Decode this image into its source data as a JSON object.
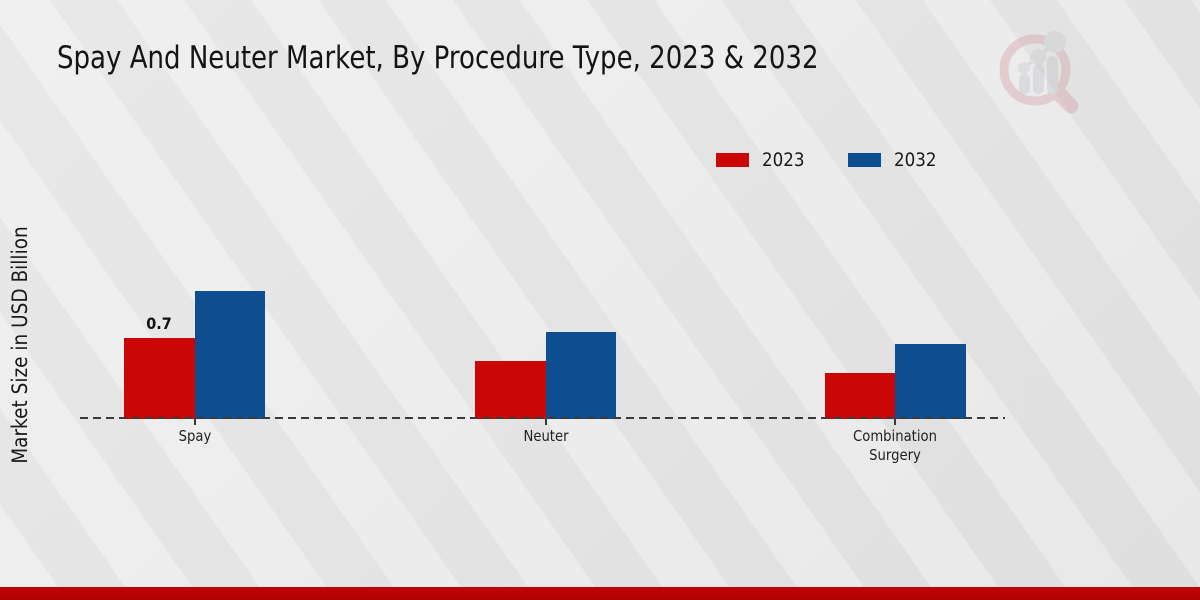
{
  "title": "Spay And Neuter Market, By Procedure Type, 2023 & 2032",
  "ylabel": "Market Size in USD Billion",
  "legend": {
    "items": [
      {
        "label": "2023",
        "color": "#c90707"
      },
      {
        "label": "2032",
        "color": "#0e4d8f"
      }
    ]
  },
  "colors": {
    "bar_2023": "#c90707",
    "bar_2032": "#0e4d8f",
    "footer": "#b70404",
    "background": "#e8e8e8",
    "axis": "#3a3a3a"
  },
  "logo": {
    "name": "market-research-future-logo"
  },
  "chart_data": {
    "type": "bar",
    "categories": [
      "Spay",
      "Neuter",
      "Combination Surgery"
    ],
    "series": [
      {
        "name": "2023",
        "color": "#c90707",
        "values": [
          0.7,
          0.5,
          0.4
        ]
      },
      {
        "name": "2032",
        "color": "#0e4d8f",
        "values": [
          1.1,
          0.75,
          0.65
        ]
      }
    ],
    "data_labels": [
      {
        "series": "2023",
        "category": "Spay",
        "text": "0.7"
      }
    ],
    "title": "Spay And Neuter Market, By Procedure Type, 2023 & 2032",
    "xlabel": "",
    "ylabel": "Market Size in USD Billion",
    "ylim": [
      0,
      1.6
    ],
    "grid": false,
    "legend_position": "top-right",
    "baseline_style": "dashed",
    "y_axis_ticks_visible": false
  }
}
